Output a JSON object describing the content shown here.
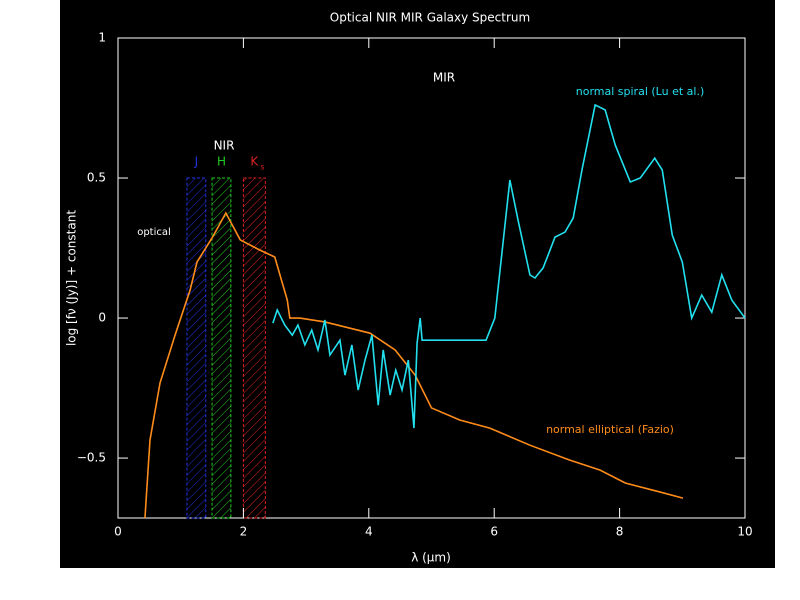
{
  "chart_data": {
    "type": "line",
    "title": "Optical  NIR  MIR Galaxy Spectrum",
    "xlabel": "λ (μm)",
    "ylabel": "log [fν (Jy)] + constant",
    "xlim": [
      0,
      10
    ],
    "xticks": [
      0,
      2,
      4,
      6,
      8,
      10
    ],
    "ylim": [
      -0.714,
      1
    ],
    "yticks": [
      {
        "value": -0.5,
        "label": "−0.5"
      },
      0,
      0.5,
      1
    ],
    "annotations": {
      "mir": "MIR",
      "nir": "NIR",
      "optical": "optical"
    },
    "bands": [
      {
        "label": "J",
        "color": "#2233dd",
        "range": [
          1.1,
          1.4
        ]
      },
      {
        "label": "H",
        "color": "#22cc22",
        "range": [
          1.5,
          1.8
        ]
      },
      {
        "label": "K",
        "subscript": "s",
        "color": "#dd2222",
        "range": [
          2.0,
          2.35
        ]
      }
    ],
    "series": [
      {
        "name": "normal elliptical (Fazio)",
        "color": "#ff8c1a",
        "x": [
          0.43,
          0.51,
          0.67,
          0.91,
          1.15,
          1.26,
          1.5,
          1.72,
          1.95,
          2.26,
          2.5,
          2.7,
          2.74,
          2.9,
          3.3,
          4.02,
          4.42,
          4.74,
          5.0,
          5.45,
          5.93,
          6.57,
          7.2,
          7.69,
          8.09,
          8.64,
          9.01
        ],
        "values": [
          -0.714,
          -0.436,
          -0.232,
          -0.061,
          0.1,
          0.2,
          0.286,
          0.375,
          0.279,
          0.243,
          0.218,
          0.064,
          0,
          0,
          -0.014,
          -0.054,
          -0.114,
          -0.204,
          -0.321,
          -0.364,
          -0.393,
          -0.454,
          -0.507,
          -0.543,
          -0.589,
          -0.621,
          -0.643
        ]
      },
      {
        "name": "normal spiral (Lu et al.)",
        "color": "#22e0ee",
        "x": [
          2.47,
          2.54,
          2.66,
          2.78,
          2.87,
          2.98,
          3.09,
          3.19,
          3.3,
          3.38,
          3.54,
          3.62,
          3.73,
          3.83,
          3.94,
          4.05,
          4.15,
          4.23,
          4.34,
          4.43,
          4.53,
          4.63,
          4.72,
          4.77,
          4.82,
          4.85,
          5.87,
          6.01,
          6.25,
          6.38,
          6.57,
          6.65,
          6.78,
          6.97,
          7.13,
          7.26,
          7.4,
          7.61,
          7.77,
          7.93,
          8.17,
          8.33,
          8.56,
          8.68,
          8.84,
          9.0,
          9.15,
          9.31,
          9.47,
          9.63,
          9.79,
          10
        ],
        "values": [
          -0.018,
          0.029,
          -0.025,
          -0.061,
          -0.025,
          -0.096,
          -0.043,
          -0.114,
          -0.007,
          -0.132,
          -0.079,
          -0.204,
          -0.096,
          -0.257,
          -0.15,
          -0.061,
          -0.311,
          -0.114,
          -0.275,
          -0.186,
          -0.257,
          -0.15,
          -0.393,
          -0.089,
          0,
          -0.079,
          -0.079,
          0,
          0.493,
          0.35,
          0.154,
          0.143,
          0.179,
          0.289,
          0.307,
          0.357,
          0.529,
          0.761,
          0.743,
          0.618,
          0.486,
          0.5,
          0.571,
          0.529,
          0.296,
          0.2,
          0,
          0.082,
          0.021,
          0.154,
          0.064,
          0
        ]
      }
    ]
  }
}
